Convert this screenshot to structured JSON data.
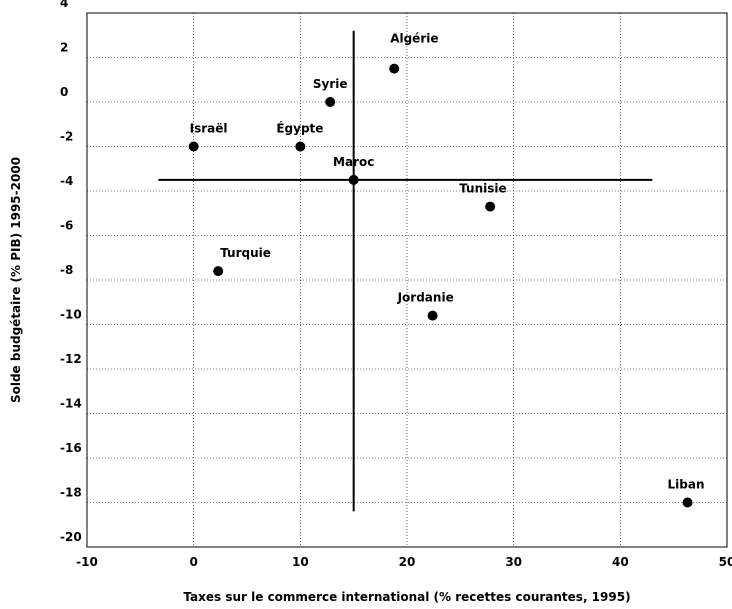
{
  "chart_data": {
    "type": "scatter",
    "xlabel": "Taxes sur le commerce international (% recettes courantes, 1995)",
    "ylabel": "Solde budgétaire (% PIB) 1995-2000",
    "xlim": [
      -10,
      50
    ],
    "ylim": [
      -20,
      4
    ],
    "x_ticks": [
      -10,
      0,
      10,
      20,
      30,
      40,
      50
    ],
    "y_ticks": [
      4,
      2,
      0,
      -2,
      -4,
      -6,
      -8,
      -10,
      -12,
      -14,
      -16,
      -18,
      -20
    ],
    "grid": true,
    "points": [
      {
        "label": "Algérie",
        "x": 18.8,
        "y": 1.5
      },
      {
        "label": "Syrie",
        "x": 12.8,
        "y": 0.0
      },
      {
        "label": "Israël",
        "x": 0.0,
        "y": -2.0
      },
      {
        "label": "Égypte",
        "x": 10.0,
        "y": -2.0
      },
      {
        "label": "Maroc",
        "x": 15.0,
        "y": -3.5
      },
      {
        "label": "Tunisie",
        "x": 27.8,
        "y": -4.7
      },
      {
        "label": "Turquie",
        "x": 2.3,
        "y": -7.6
      },
      {
        "label": "Jordanie",
        "x": 22.4,
        "y": -9.6
      },
      {
        "label": "Liban",
        "x": 46.3,
        "y": -18.0
      }
    ],
    "reference_lines": {
      "vertical": {
        "x": 15.0,
        "y_from": -18.4,
        "y_to": 3.2
      },
      "horizontal": {
        "y": -3.5,
        "x_from": -3.3,
        "x_to": 43.0
      }
    }
  }
}
